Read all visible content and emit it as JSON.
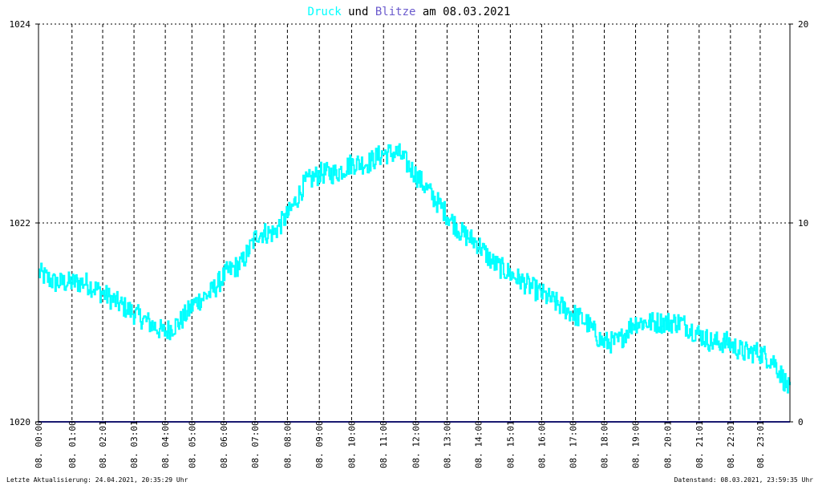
{
  "chart_data": {
    "type": "line",
    "title": {
      "part1": "Druck",
      "part2": " und ",
      "part3": "Blitze",
      "part4": " am 08.03.2021",
      "color_druck": "#00ffff",
      "color_blitze": "#6a5acd",
      "color_text": "#000000"
    },
    "x_tick_labels": [
      "08. 00:00",
      "08. 01:00",
      "08. 02:01",
      "08. 03:01",
      "08. 04:00",
      "08. 05:00",
      "08. 06:00",
      "08. 07:00",
      "08. 08:00",
      "08. 09:00",
      "08. 10:00",
      "08. 11:00",
      "08. 12:00",
      "08. 13:00",
      "08. 14:00",
      "08. 15:01",
      "08. 16:00",
      "08. 17:00",
      "08. 18:00",
      "08. 19:00",
      "08. 20:01",
      "08. 21:01",
      "08. 22:01",
      "08. 23:01"
    ],
    "x_tick_hours": [
      0,
      1.07,
      2.05,
      3.05,
      4.05,
      4.9,
      5.92,
      6.92,
      7.95,
      8.97,
      10.0,
      11.02,
      12.05,
      13.05,
      14.05,
      15.07,
      16.07,
      17.07,
      18.07,
      19.07,
      20.1,
      21.1,
      22.1,
      23.05
    ],
    "x_range_hours": [
      0,
      24
    ],
    "y_left": {
      "ticks": [
        "1024",
        "1022",
        "1020"
      ],
      "range": [
        1020,
        1024
      ]
    },
    "y_right": {
      "ticks": [
        "20",
        "10",
        "0"
      ],
      "range": [
        0,
        20
      ]
    },
    "series": [
      {
        "name": "Druck",
        "color": "#00ffff",
        "hours": [
          0,
          0.5,
          1,
          1.5,
          2,
          2.5,
          3,
          3.5,
          4,
          4.5,
          5,
          5.5,
          6,
          6.5,
          7,
          7.5,
          8,
          8.5,
          9,
          9.5,
          10,
          10.5,
          11,
          11.5,
          12,
          12.5,
          13,
          13.5,
          14,
          14.5,
          15,
          15.5,
          16,
          16.5,
          17,
          17.5,
          18,
          18.5,
          19,
          19.5,
          20,
          20.5,
          21,
          21.5,
          22,
          22.5,
          23,
          23.5,
          24
        ],
        "values": [
          1021.5,
          1021.4,
          1021.4,
          1021.4,
          1021.3,
          1021.2,
          1021.1,
          1021.0,
          1020.9,
          1021.0,
          1021.2,
          1021.3,
          1021.5,
          1021.6,
          1021.9,
          1021.9,
          1022.1,
          1022.4,
          1022.5,
          1022.5,
          1022.6,
          1022.6,
          1022.7,
          1022.7,
          1022.5,
          1022.3,
          1022.1,
          1021.9,
          1021.8,
          1021.6,
          1021.5,
          1021.4,
          1021.3,
          1021.2,
          1021.1,
          1021.0,
          1020.8,
          1020.8,
          1021.0,
          1021.0,
          1021.0,
          1021.0,
          1020.9,
          1020.8,
          1020.8,
          1020.7,
          1020.7,
          1020.6,
          1020.3
        ]
      },
      {
        "name": "Blitze",
        "color": "#191970",
        "hours": [
          0,
          24
        ],
        "values": [
          0,
          0
        ]
      }
    ],
    "grid": true,
    "footer_left": "Letzte Aktualisierung: 24.04.2021, 20:35:29 Uhr",
    "footer_right": "Datenstand: 08.03.2021, 23:59:35 Uhr"
  }
}
